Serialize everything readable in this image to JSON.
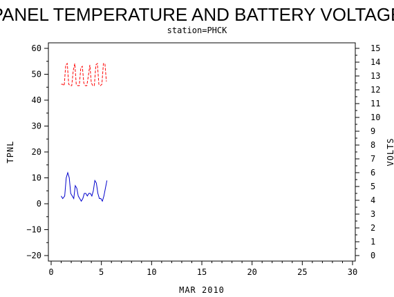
{
  "chart_data": {
    "type": "line",
    "title": "PANEL TEMPERATURE AND BATTERY VOLTAGE",
    "subtitle": "station=PHCK",
    "xlabel": "MAR 2010",
    "ylabel_left": "TPNL",
    "ylabel_right": "VOLTS",
    "xlim": [
      0,
      30
    ],
    "ylim_left": [
      -20,
      60
    ],
    "ylim_right": [
      0,
      15
    ],
    "x_ticks": [
      0,
      5,
      10,
      15,
      20,
      25,
      30
    ],
    "y_ticks_left": [
      -20,
      -10,
      0,
      10,
      20,
      30,
      40,
      50,
      60
    ],
    "y_ticks_right": [
      0,
      1,
      2,
      3,
      4,
      5,
      6,
      7,
      8,
      9,
      10,
      11,
      12,
      13,
      14,
      15
    ],
    "grid": false,
    "series": [
      {
        "axis": "left",
        "color": "#0000cc",
        "style": "solid",
        "x": [
          1.0,
          1.15,
          1.35,
          1.5,
          1.65,
          1.8,
          1.95,
          2.1,
          2.25,
          2.4,
          2.55,
          2.7,
          2.85,
          3.0,
          3.15,
          3.3,
          3.45,
          3.6,
          3.75,
          3.9,
          4.05,
          4.2,
          4.35,
          4.5,
          4.65,
          4.8,
          4.95,
          5.1,
          5.25,
          5.4,
          5.55
        ],
        "values": [
          3,
          2,
          3,
          10,
          12,
          10,
          4,
          3,
          2,
          7,
          6,
          3,
          2,
          1,
          2,
          4,
          4,
          3,
          4,
          4,
          3,
          5,
          9,
          8,
          4,
          2,
          2,
          1,
          3,
          6,
          9
        ]
      },
      {
        "axis": "right",
        "color": "#ff0000",
        "style": "dashed",
        "x": [
          1.0,
          1.15,
          1.3,
          1.45,
          1.6,
          1.75,
          1.9,
          2.05,
          2.2,
          2.35,
          2.5,
          2.65,
          2.8,
          2.95,
          3.1,
          3.25,
          3.4,
          3.55,
          3.7,
          3.85,
          4.0,
          4.15,
          4.3,
          4.45,
          4.6,
          4.75,
          4.9,
          5.05,
          5.2,
          5.35,
          5.5
        ],
        "values": [
          12.4,
          12.4,
          12.3,
          13.8,
          13.9,
          12.4,
          12.3,
          12.3,
          13.4,
          13.9,
          12.4,
          12.3,
          12.3,
          13.6,
          13.7,
          12.5,
          12.3,
          12.3,
          13.0,
          13.8,
          12.5,
          12.3,
          12.3,
          13.8,
          13.9,
          12.4,
          12.3,
          12.4,
          13.9,
          13.9,
          12.6
        ]
      }
    ]
  }
}
